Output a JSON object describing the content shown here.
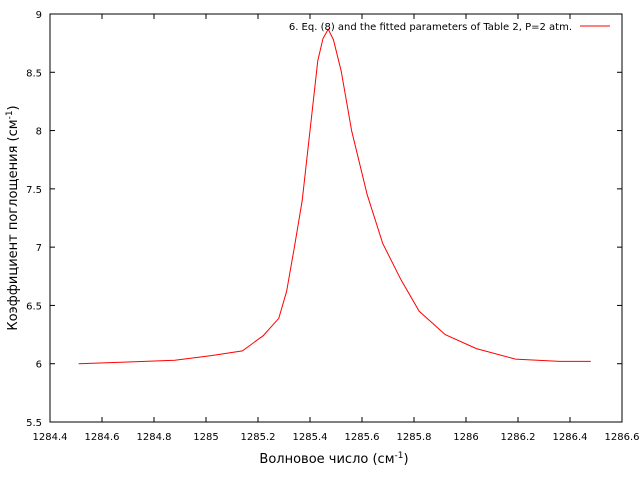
{
  "chart_data": {
    "type": "line",
    "xlabel": "Волновое число (см",
    "xlabel_sup": "-1",
    "xlabel_tail": ")",
    "ylabel": "Коэффициент поглощения (см",
    "ylabel_sup": "-1",
    "ylabel_tail": ")",
    "xlim": [
      1284.4,
      1286.6
    ],
    "ylim": [
      5.5,
      9
    ],
    "xticks": [
      1284.4,
      1284.6,
      1284.8,
      1285,
      1285.2,
      1285.4,
      1285.6,
      1285.8,
      1286,
      1286.2,
      1286.4,
      1286.6
    ],
    "xtick_labels": [
      "1284.4",
      "1284.6",
      "1284.8",
      "1285",
      "1285.2",
      "1285.4",
      "1285.6",
      "1285.8",
      "1286",
      "1286.2",
      "1286.4",
      "1286.6"
    ],
    "yticks": [
      5.5,
      6,
      6.5,
      7,
      7.5,
      8,
      8.5,
      9
    ],
    "ytick_labels": [
      "5.5",
      "6",
      "6.5",
      "7",
      "7.5",
      "8",
      "8.5",
      "9"
    ],
    "grid": false,
    "legend_position": "top-right",
    "series": [
      {
        "name": "6. Eq. (8) and the fitted parameters of Table 2, P=2 atm.",
        "color": "#ff0000",
        "x": [
          1284.51,
          1284.7,
          1284.88,
          1285.02,
          1285.14,
          1285.22,
          1285.28,
          1285.31,
          1285.34,
          1285.37,
          1285.4,
          1285.43,
          1285.45,
          1285.47,
          1285.49,
          1285.52,
          1285.56,
          1285.62,
          1285.68,
          1285.75,
          1285.82,
          1285.92,
          1286.04,
          1286.19,
          1286.36,
          1286.48
        ],
        "y": [
          6.0,
          6.015,
          6.03,
          6.07,
          6.11,
          6.24,
          6.39,
          6.62,
          7.0,
          7.4,
          8.0,
          8.6,
          8.79,
          8.87,
          8.78,
          8.51,
          8.0,
          7.45,
          7.03,
          6.72,
          6.45,
          6.25,
          6.13,
          6.04,
          6.02,
          6.02
        ]
      }
    ]
  }
}
